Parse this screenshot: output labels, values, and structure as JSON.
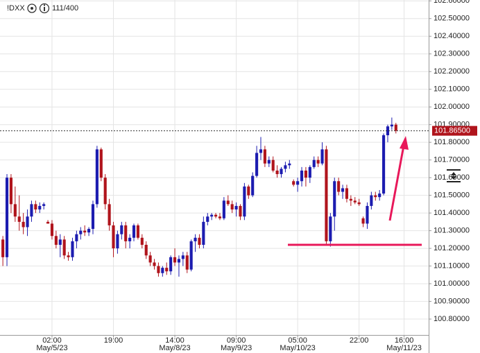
{
  "chart_data": {
    "type": "candlestick",
    "symbol": "!DXX",
    "bar_count": "111/400",
    "up_color": "#1c1cb0",
    "down_color": "#b0141c",
    "grid": true,
    "open": [
      101.25,
      101.15,
      101.6,
      101.45,
      101.38,
      101.35,
      101.32,
      101.38,
      101.45,
      101.42,
      101.44,
      101.35,
      101.34,
      101.27,
      101.22,
      101.25,
      101.16,
      101.15,
      101.24,
      101.28,
      101.3,
      101.29,
      101.31,
      101.45,
      101.76,
      101.6,
      101.45,
      101.33,
      101.2,
      101.28,
      101.33,
      101.24,
      101.26,
      101.33,
      101.26,
      101.22,
      101.16,
      101.12,
      101.1,
      101.06,
      101.09,
      101.07,
      101.15,
      101.12,
      101.14,
      101.16,
      101.08,
      101.24,
      101.26,
      101.22,
      101.35,
      101.38,
      101.39,
      101.38,
      101.37,
      101.47,
      101.45,
      101.42,
      101.44,
      101.38,
      101.55,
      101.5,
      101.61,
      101.74,
      101.76,
      101.68,
      101.7,
      101.64,
      101.62,
      101.65,
      101.67,
      101.58,
      101.56,
      101.58,
      101.64,
      101.6,
      101.66,
      101.7,
      101.68,
      101.76,
      101.24,
      101.38,
      101.58,
      101.52,
      101.54,
      101.48,
      101.47,
      101.46,
      101.37,
      101.34,
      101.44,
      101.5,
      101.49,
      101.51,
      101.84,
      101.89,
      101.9
    ],
    "high": [
      101.27,
      101.62,
      101.62,
      101.55,
      101.5,
      101.4,
      101.42,
      101.47,
      101.47,
      101.46,
      101.46,
      101.36,
      101.36,
      101.3,
      101.28,
      101.27,
      101.18,
      101.26,
      101.3,
      101.32,
      101.33,
      101.32,
      101.47,
      101.78,
      101.77,
      101.62,
      101.48,
      101.35,
      101.3,
      101.35,
      101.35,
      101.28,
      101.34,
      101.34,
      101.28,
      101.24,
      101.18,
      101.14,
      101.12,
      101.1,
      101.12,
      101.16,
      101.2,
      101.16,
      101.18,
      101.18,
      101.25,
      101.28,
      101.28,
      101.38,
      101.4,
      101.4,
      101.4,
      101.4,
      101.49,
      101.5,
      101.47,
      101.46,
      101.45,
      101.57,
      101.56,
      101.63,
      101.78,
      101.83,
      101.78,
      101.72,
      101.72,
      101.67,
      101.66,
      101.69,
      101.7,
      101.59,
      101.6,
      101.66,
      101.66,
      101.67,
      101.72,
      101.72,
      101.8,
      101.78,
      101.4,
      101.6,
      101.6,
      101.56,
      101.56,
      101.5,
      101.49,
      101.48,
      101.38,
      101.46,
      101.52,
      101.52,
      101.53,
      101.85,
      101.9,
      101.94,
      101.91
    ],
    "low": [
      101.1,
      101.1,
      101.4,
      101.35,
      101.3,
      101.28,
      101.27,
      101.35,
      101.4,
      101.4,
      101.42,
      101.34,
      101.25,
      101.2,
      101.15,
      101.14,
      101.13,
      101.13,
      101.2,
      101.25,
      101.27,
      101.27,
      101.28,
      101.43,
      101.58,
      101.42,
      101.3,
      101.15,
      101.17,
      101.25,
      101.2,
      101.2,
      101.24,
      101.25,
      101.2,
      101.14,
      101.1,
      101.08,
      101.04,
      101.04,
      101.05,
      101.05,
      101.1,
      101.04,
      101.1,
      101.06,
      101.07,
      101.18,
      101.2,
      101.2,
      101.33,
      101.36,
      101.37,
      101.36,
      101.36,
      101.44,
      101.4,
      101.38,
      101.36,
      101.36,
      101.48,
      101.49,
      101.6,
      101.7,
      101.66,
      101.66,
      101.63,
      101.6,
      101.6,
      101.63,
      101.65,
      101.55,
      101.52,
      101.55,
      101.55,
      101.57,
      101.65,
      101.66,
      101.67,
      101.22,
      101.21,
      101.3,
      101.5,
      101.48,
      101.46,
      101.44,
      101.45,
      101.44,
      101.32,
      101.31,
      101.42,
      101.47,
      101.47,
      101.5,
      101.8,
      101.87,
      101.85
    ],
    "close": [
      101.15,
      101.6,
      101.45,
      101.38,
      101.35,
      101.32,
      101.38,
      101.45,
      101.42,
      101.44,
      101.45,
      101.34,
      101.27,
      101.22,
      101.25,
      101.16,
      101.15,
      101.24,
      101.28,
      101.3,
      101.29,
      101.31,
      101.45,
      101.76,
      101.6,
      101.45,
      101.33,
      101.2,
      101.28,
      101.33,
      101.24,
      101.26,
      101.33,
      101.26,
      101.22,
      101.16,
      101.12,
      101.1,
      101.06,
      101.09,
      101.07,
      101.15,
      101.12,
      101.14,
      101.16,
      101.08,
      101.24,
      101.26,
      101.22,
      101.35,
      101.38,
      101.39,
      101.38,
      101.37,
      101.47,
      101.45,
      101.42,
      101.44,
      101.38,
      101.55,
      101.5,
      101.61,
      101.74,
      101.76,
      101.68,
      101.7,
      101.64,
      101.62,
      101.65,
      101.67,
      101.68,
      101.56,
      101.58,
      101.64,
      101.6,
      101.66,
      101.7,
      101.68,
      101.76,
      101.24,
      101.38,
      101.58,
      101.52,
      101.54,
      101.48,
      101.47,
      101.46,
      101.45,
      101.34,
      101.44,
      101.5,
      101.49,
      101.51,
      101.84,
      101.89,
      101.9,
      101.865
    ],
    "xlim": [
      -0.7,
      104
    ],
    "xticks": [
      {
        "value": 12,
        "label": "02:00"
      },
      {
        "value": 27,
        "label": "19:00"
      },
      {
        "value": 42,
        "label": "14:00"
      },
      {
        "value": 57,
        "label": "09:00"
      },
      {
        "value": 72,
        "label": "05:00"
      },
      {
        "value": 87,
        "label": "22:00"
      },
      {
        "value": 98,
        "label": "16:00"
      }
    ],
    "xdate_ticks": [
      {
        "value": 12,
        "label": "May/5/23"
      },
      {
        "value": 42,
        "label": "May/8/23"
      },
      {
        "value": 57,
        "label": "May/9/23"
      },
      {
        "value": 72,
        "label": "May/10/23"
      },
      {
        "value": 98,
        "label": "May/11/23"
      }
    ],
    "ylim": [
      100.71,
      102.605
    ],
    "yticks": [
      {
        "value": 100.8,
        "label": "100.80000"
      },
      {
        "value": 100.9,
        "label": "100.90000"
      },
      {
        "value": 101.0,
        "label": "101.00000"
      },
      {
        "value": 101.1,
        "label": "101.10000"
      },
      {
        "value": 101.2,
        "label": "101.20000"
      },
      {
        "value": 101.3,
        "label": "101.30000"
      },
      {
        "value": 101.4,
        "label": "101.40000"
      },
      {
        "value": 101.5,
        "label": "101.50000"
      },
      {
        "value": 101.6,
        "label": "101.60000"
      },
      {
        "value": 101.7,
        "label": "101.70000"
      },
      {
        "value": 101.8,
        "label": "101.80000"
      },
      {
        "value": 101.9,
        "label": "101.90000"
      },
      {
        "value": 102.0,
        "label": "102.00000"
      },
      {
        "value": 102.1,
        "label": "102.10000"
      },
      {
        "value": 102.2,
        "label": "102.20000"
      },
      {
        "value": 102.3,
        "label": "102.30000"
      },
      {
        "value": 102.4,
        "label": "102.40000"
      },
      {
        "value": 102.5,
        "label": "102.50000"
      },
      {
        "value": 102.6,
        "label": "102.60000"
      }
    ],
    "last_price": {
      "value": 101.865,
      "label": "101.86500"
    },
    "support_line": {
      "value": 101.22,
      "color": "#e8185a"
    }
  }
}
